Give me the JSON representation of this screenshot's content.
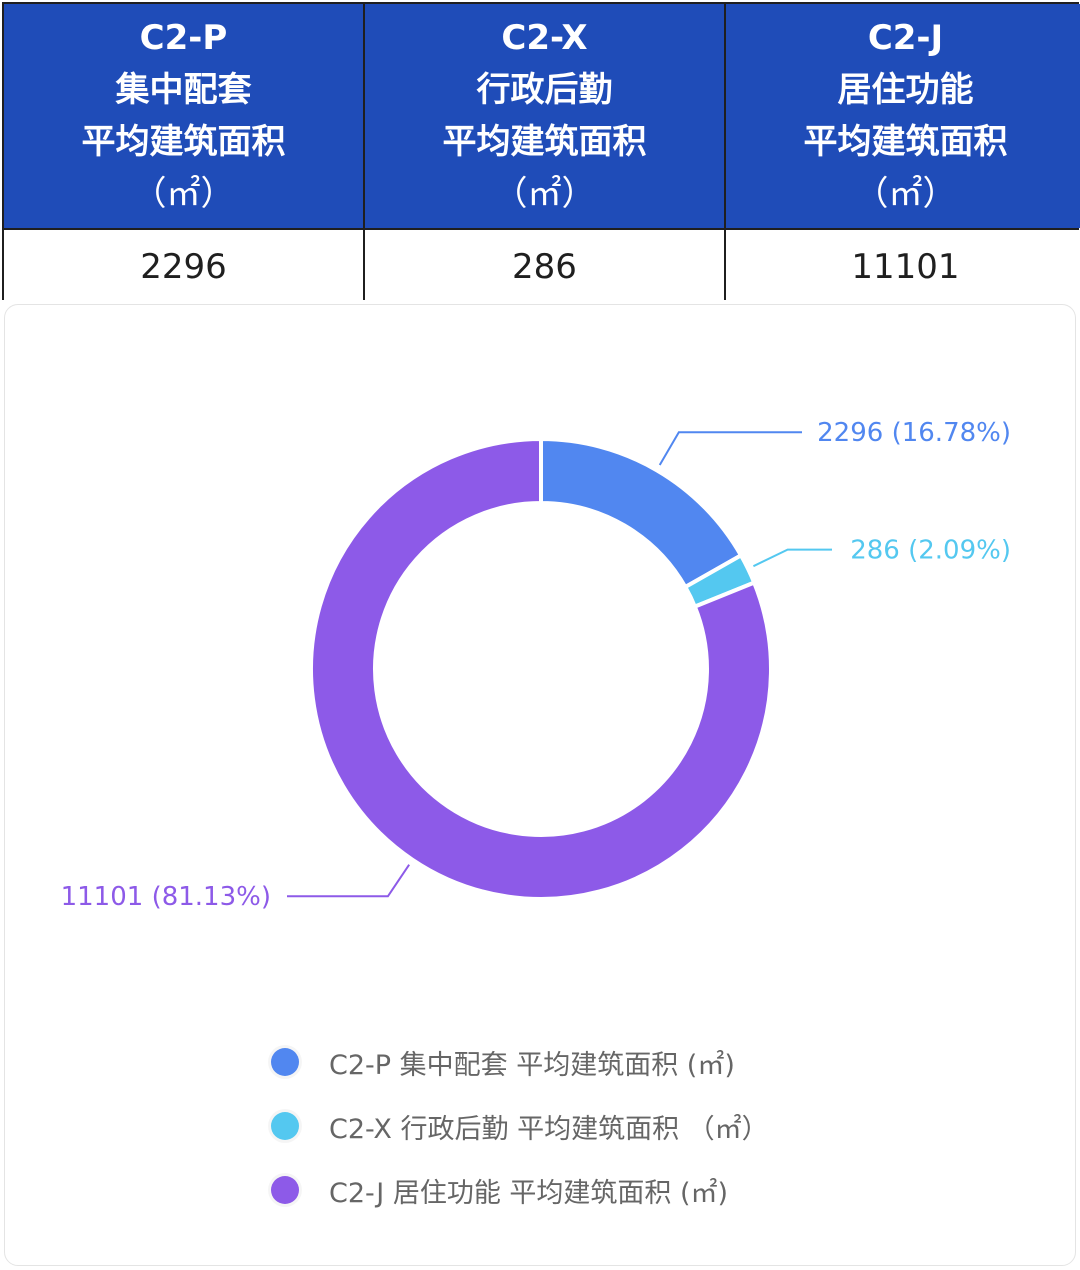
{
  "table": {
    "headers": [
      {
        "code": "C2-P",
        "name": "集中配套",
        "metric": "平均建筑面积",
        "unit": "（㎡）"
      },
      {
        "code": "C2-X",
        "name": "行政后勤",
        "metric": "平均建筑面积",
        "unit": "（㎡）"
      },
      {
        "code": "C2-J",
        "name": "居住功能",
        "metric": "平均建筑面积",
        "unit": "（㎡）"
      }
    ],
    "values": [
      "2296",
      "286",
      "11101"
    ],
    "header_color": "#1f4cb8"
  },
  "chart_data": {
    "type": "pie",
    "variant": "donut",
    "slices": [
      {
        "name": "C2-P 集中配套 平均建筑面积 (㎡)",
        "value": 2296,
        "percent": 16.78,
        "label": "2296 (16.78%)",
        "color": "#5187f0"
      },
      {
        "name": "C2-X 行政后勤 平均建筑面积 （㎡）",
        "value": 286,
        "percent": 2.09,
        "label": "286 (2.09%)",
        "color": "#54c8f0"
      },
      {
        "name": "C2-J 居住功能 平均建筑面积 (㎡)",
        "value": 11101,
        "percent": 81.13,
        "label": "11101 (81.13%)",
        "color": "#8d5ae8"
      }
    ],
    "legend_position": "bottom"
  }
}
